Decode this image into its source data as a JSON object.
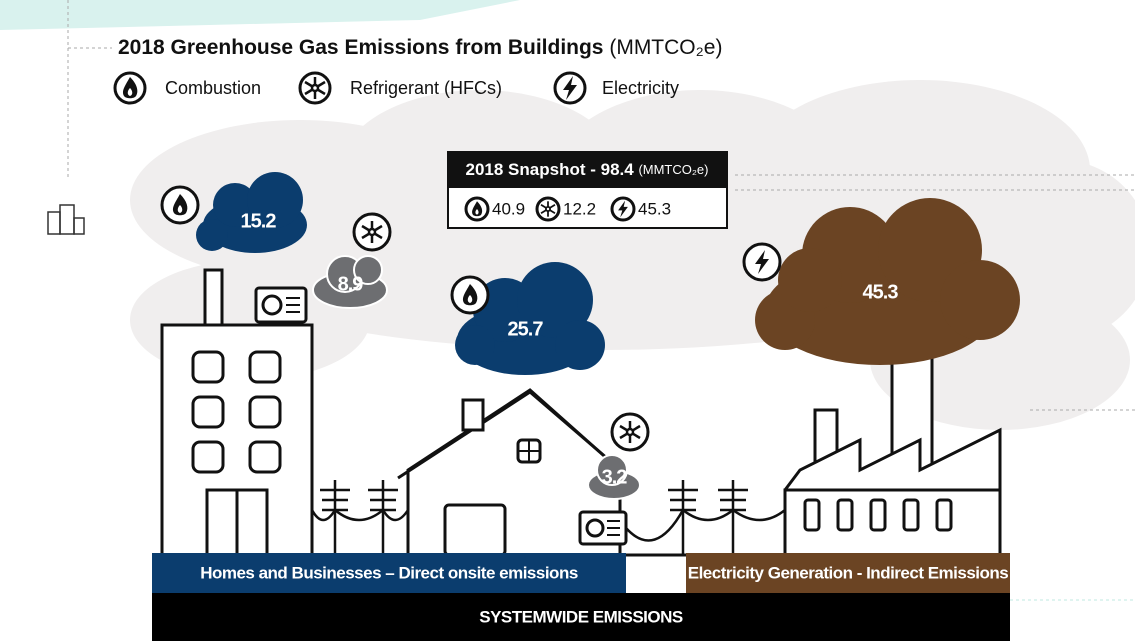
{
  "header": {
    "title": "2018 Greenhouse Gas Emissions from Buildings",
    "unit": "(MMTCO₂e)"
  },
  "legend": [
    "Combustion",
    "Refrigerant (HFCs)",
    "Electricity"
  ],
  "snapshot": {
    "title": "2018 Snapshot - 98.4",
    "unit": "(MMTCO₂e)",
    "combustion": 40.9,
    "refrigerant": 12.2,
    "electricity": 45.3
  },
  "clouds": {
    "building_combustion": 15.2,
    "building_refrigerant": 8.9,
    "house_combustion": 25.7,
    "house_refrigerant": 3.2,
    "electricity": 45.3
  },
  "bars": {
    "direct": "Homes and Businesses – Direct onsite emissions",
    "indirect": "Electricity Generation - Indirect Emissions",
    "total": "SYSTEMWIDE EMISSIONS"
  }
}
